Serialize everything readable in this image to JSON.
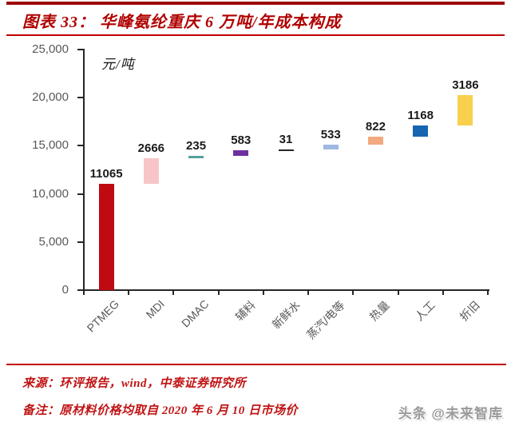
{
  "header": {
    "title": "图表 33： 华峰氨纶重庆 6 万吨/年成本构成"
  },
  "chart_data": {
    "type": "bar",
    "subtype": "waterfall",
    "title": "华峰氨纶重庆6万吨/年成本构成",
    "unit_label": "元/吨",
    "categories": [
      "PTMEG",
      "MDI",
      "DMAC",
      "辅料",
      "新鲜水",
      "蒸汽/电等",
      "热量",
      "人工",
      "折旧"
    ],
    "values": [
      11065,
      2666,
      235,
      583,
      31,
      533,
      822,
      1168,
      3186
    ],
    "cumulative_total": 20289,
    "bar_colors": [
      "#be0a10",
      "#f7c4c8",
      "#55a09c",
      "#7030a0",
      "#262626",
      "#9fb8e2",
      "#f2a97e",
      "#1565b0",
      "#f8d04e"
    ],
    "ylim": [
      0,
      25000
    ],
    "ytick_step": 5000,
    "ytick_labels": [
      "0",
      "5,000",
      "10,000",
      "15,000",
      "20,000",
      "25,000"
    ],
    "grid": false,
    "legend": "none",
    "value_labels": "above-bars"
  },
  "footer": {
    "source": "来源：环评报告，wind，中泰证券研究所",
    "note": "备注：原材料价格均取自 2020 年 6 月 10 日市场价",
    "watermark": "头条 @未来智库"
  },
  "colors": {
    "accent_red": "#b00000",
    "axis": "#262626",
    "tick_label": "#595959",
    "value_label": "#1a1a1a"
  }
}
